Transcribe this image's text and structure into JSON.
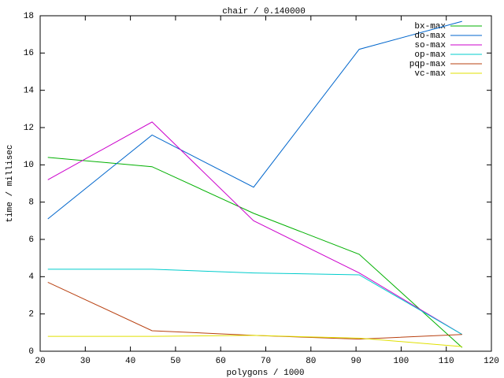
{
  "chart_data": {
    "type": "line",
    "title": "chair / 0.140000",
    "x_label": "polygons / 1000",
    "y_label": "time / millisec",
    "x": [
      21.7,
      44.8,
      67.3,
      90.7,
      113.5
    ],
    "series": [
      {
        "name": "bx-max",
        "color": "#00b000",
        "values": [
          10.4,
          9.9,
          7.4,
          5.2,
          0.2
        ]
      },
      {
        "name": "do-max",
        "color": "#0066cc",
        "values": [
          7.1,
          11.6,
          8.8,
          16.2,
          17.7
        ]
      },
      {
        "name": "so-max",
        "color": "#cc00cc",
        "values": [
          9.2,
          12.3,
          7.0,
          4.2,
          0.9
        ]
      },
      {
        "name": "op-max",
        "color": "#00cccc",
        "values": [
          4.4,
          4.4,
          4.2,
          4.1,
          0.9
        ]
      },
      {
        "name": "pqp-max",
        "color": "#b84010",
        "values": [
          3.7,
          1.1,
          0.85,
          0.65,
          0.9
        ]
      },
      {
        "name": "vc-max",
        "color": "#e0e000",
        "values": [
          0.8,
          0.8,
          0.85,
          0.7,
          0.25
        ]
      }
    ],
    "xlim": [
      20,
      120
    ],
    "xticks": [
      20,
      30,
      40,
      50,
      60,
      70,
      80,
      90,
      100,
      110,
      120
    ],
    "ylim": [
      0,
      18
    ],
    "yticks": [
      0,
      2,
      4,
      6,
      8,
      10,
      12,
      14,
      16,
      18
    ],
    "legend": "top-right"
  }
}
